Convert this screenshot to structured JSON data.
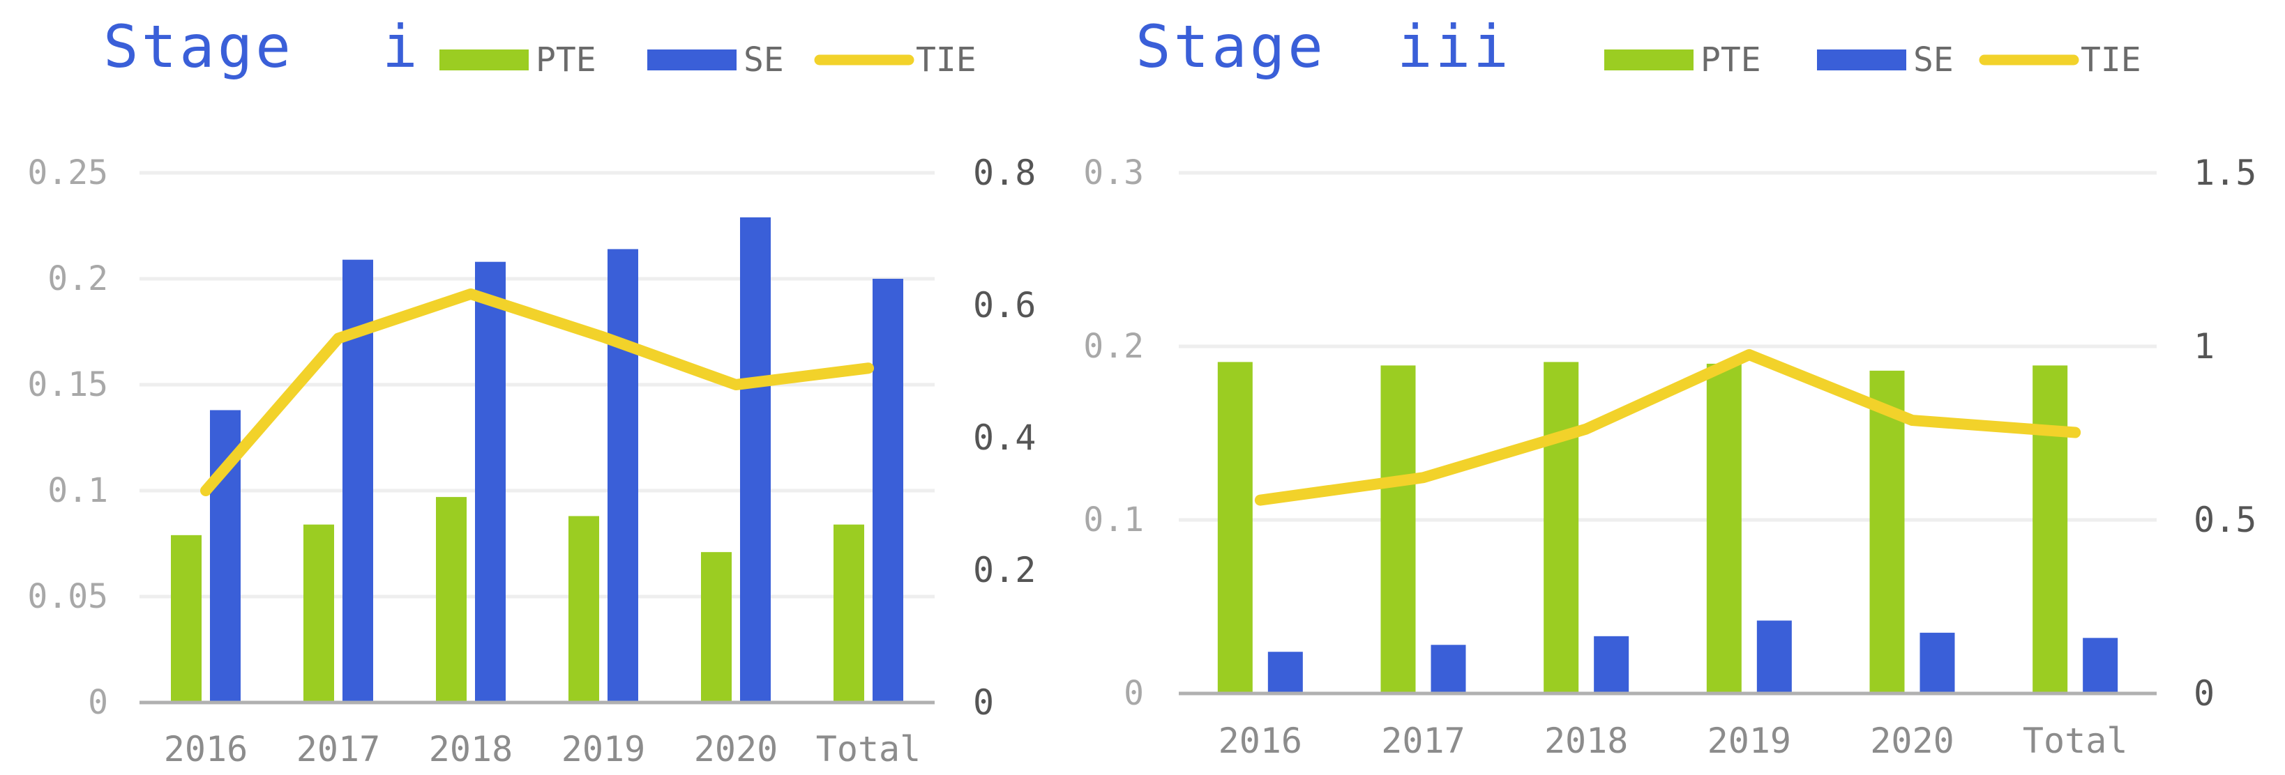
{
  "colors": {
    "PTE": "#9bcd22",
    "SE": "#3a5fd8",
    "TIE": "#f2d22a"
  },
  "chart_data": [
    {
      "type": "bar",
      "title": "Stage i",
      "title_word": "Stage",
      "title_numeral": "i",
      "legend": [
        "PTE",
        "SE",
        "TIE"
      ],
      "categories": [
        "2016",
        "2017",
        "2018",
        "2019",
        "2020",
        "Total"
      ],
      "yleft": {
        "lim": [
          0,
          0.25
        ],
        "ticks": [
          "0",
          "0.05",
          "0.1",
          "0.15",
          "0.2",
          "0.25"
        ]
      },
      "yright": {
        "lim": [
          0,
          0.8
        ],
        "ticks": [
          "0",
          "0.2",
          "0.4",
          "0.6",
          "0.8"
        ]
      },
      "series": [
        {
          "name": "PTE",
          "type": "bar",
          "axis": "left",
          "values": [
            0.079,
            0.084,
            0.097,
            0.088,
            0.071,
            0.084
          ]
        },
        {
          "name": "SE",
          "type": "bar",
          "axis": "left",
          "values": [
            0.138,
            0.209,
            0.208,
            0.214,
            0.229,
            0.2
          ]
        },
        {
          "name": "TIE",
          "type": "line",
          "axis": "right",
          "values": [
            0.32,
            0.55,
            0.617,
            0.552,
            0.48,
            0.505
          ]
        }
      ],
      "grid": true,
      "legend_position": "top"
    },
    {
      "type": "bar",
      "title": "Stage iii",
      "title_word": "Stage",
      "title_numeral": "iii",
      "legend": [
        "PTE",
        "SE",
        "TIE"
      ],
      "categories": [
        "2016",
        "2017",
        "2018",
        "2019",
        "2020",
        "Total"
      ],
      "yleft": {
        "lim": [
          0,
          0.3
        ],
        "ticks": [
          "0",
          "0.1",
          "0.2",
          "0.3"
        ]
      },
      "yright": {
        "lim": [
          0,
          1.5
        ],
        "ticks": [
          "0",
          "0.5",
          "1",
          "1.5"
        ]
      },
      "series": [
        {
          "name": "PTE",
          "type": "bar",
          "axis": "left",
          "values": [
            0.191,
            0.189,
            0.191,
            0.19,
            0.186,
            0.189
          ]
        },
        {
          "name": "SE",
          "type": "bar",
          "axis": "left",
          "values": [
            0.024,
            0.028,
            0.033,
            0.042,
            0.035,
            0.032
          ]
        },
        {
          "name": "TIE",
          "type": "line",
          "axis": "right",
          "values": [
            0.557,
            0.622,
            0.762,
            0.976,
            0.787,
            0.752
          ]
        }
      ],
      "grid": true,
      "legend_position": "top"
    }
  ]
}
